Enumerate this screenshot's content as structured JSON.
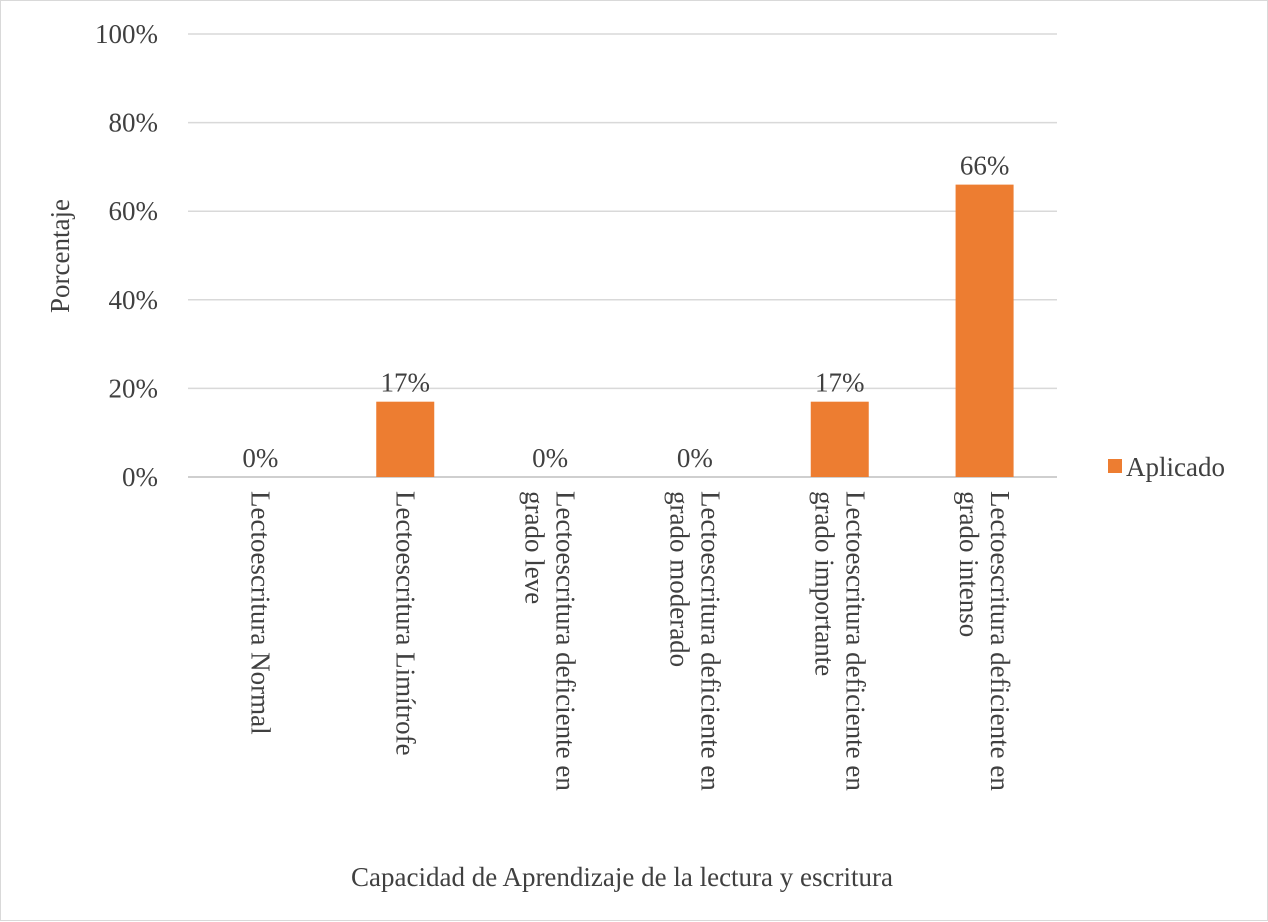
{
  "chart_data": {
    "type": "bar",
    "xlabel": "Capacidad de Aprendizaje de la lectura y escritura",
    "ylabel": "Porcentaje",
    "ylim": [
      0,
      100
    ],
    "yticks": [
      "0%",
      "20%",
      "40%",
      "60%",
      "80%",
      "100%"
    ],
    "grid": true,
    "legend_position": "right",
    "categories": [
      [
        "Lectoescritura Normal"
      ],
      [
        "Lectoescritura Limítrofe"
      ],
      [
        "Lectoescritura deficiente en",
        "grado leve"
      ],
      [
        "Lectoescritura deficiente en",
        "grado moderado"
      ],
      [
        "Lectoescritura deficiente en",
        "grado importante"
      ],
      [
        "Lectoescritura deficiente en",
        "grado intenso"
      ]
    ],
    "series": [
      {
        "name": "Aplicado",
        "color": "#ed7d31",
        "values": [
          0,
          17,
          0,
          0,
          17,
          66
        ],
        "labels": [
          "0%",
          "17%",
          "0%",
          "0%",
          "17%",
          "66%"
        ]
      }
    ]
  }
}
